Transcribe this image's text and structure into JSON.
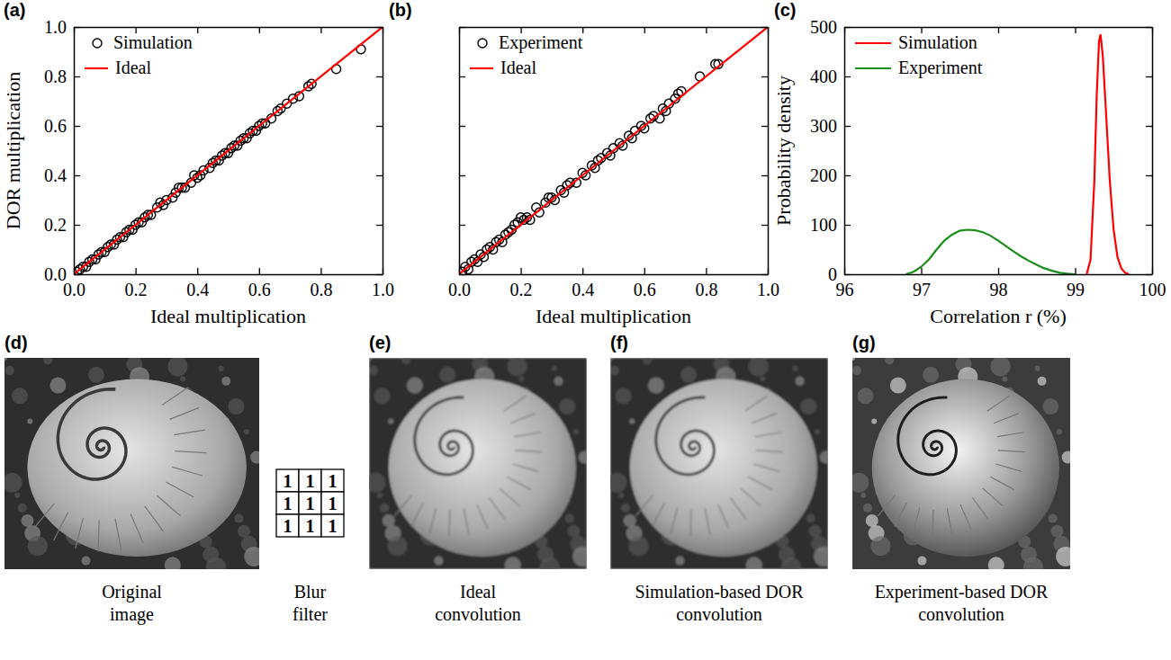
{
  "chart_data": [
    {
      "type": "scatter",
      "panel_label": "(a)",
      "xlabel": "Ideal multiplication",
      "ylabel": "DOR multiplication",
      "xlim": [
        0,
        1
      ],
      "ylim": [
        0,
        1
      ],
      "xticks": [
        {
          "value": 0,
          "label": "0.0"
        },
        0.2,
        0.4,
        0.6,
        0.8,
        {
          "value": 1,
          "label": "1.0"
        }
      ],
      "yticks": [
        {
          "value": 0,
          "label": "0.0"
        },
        0.2,
        0.4,
        0.6,
        0.8,
        {
          "value": 1,
          "label": "1.0"
        }
      ],
      "legend": "upper left",
      "series": [
        {
          "name": "Simulation",
          "type": "scatter",
          "marker": "circle",
          "color": "#000000",
          "x": [
            0.01,
            0.02,
            0.03,
            0.04,
            0.05,
            0.06,
            0.07,
            0.08,
            0.09,
            0.1,
            0.11,
            0.12,
            0.13,
            0.14,
            0.15,
            0.16,
            0.17,
            0.18,
            0.19,
            0.2,
            0.21,
            0.22,
            0.23,
            0.24,
            0.25,
            0.27,
            0.28,
            0.29,
            0.3,
            0.32,
            0.33,
            0.34,
            0.35,
            0.36,
            0.38,
            0.39,
            0.4,
            0.41,
            0.42,
            0.44,
            0.45,
            0.46,
            0.47,
            0.48,
            0.49,
            0.5,
            0.51,
            0.52,
            0.53,
            0.54,
            0.55,
            0.56,
            0.57,
            0.58,
            0.59,
            0.6,
            0.61,
            0.62,
            0.64,
            0.66,
            0.67,
            0.69,
            0.71,
            0.73,
            0.76,
            0.77,
            0.85,
            0.93
          ],
          "values": [
            0.01,
            0.02,
            0.03,
            0.03,
            0.05,
            0.06,
            0.06,
            0.08,
            0.09,
            0.09,
            0.11,
            0.12,
            0.12,
            0.14,
            0.15,
            0.15,
            0.17,
            0.18,
            0.18,
            0.2,
            0.21,
            0.21,
            0.23,
            0.24,
            0.24,
            0.27,
            0.29,
            0.28,
            0.3,
            0.31,
            0.33,
            0.35,
            0.35,
            0.35,
            0.37,
            0.4,
            0.39,
            0.4,
            0.42,
            0.43,
            0.45,
            0.46,
            0.46,
            0.48,
            0.49,
            0.49,
            0.51,
            0.52,
            0.52,
            0.54,
            0.55,
            0.55,
            0.57,
            0.58,
            0.58,
            0.6,
            0.61,
            0.61,
            0.63,
            0.66,
            0.67,
            0.69,
            0.71,
            0.72,
            0.76,
            0.77,
            0.83,
            0.91
          ]
        },
        {
          "name": "Ideal",
          "type": "line",
          "line_style": "solid",
          "color": "#ff0000",
          "x": [
            0,
            1
          ],
          "values": [
            0,
            1
          ]
        }
      ]
    },
    {
      "type": "scatter",
      "panel_label": "(b)",
      "xlabel": "Ideal multiplication",
      "xlim": [
        0,
        1
      ],
      "ylim": [
        0,
        1
      ],
      "xticks": [
        {
          "value": 0,
          "label": "0.0"
        },
        0.2,
        0.4,
        0.6,
        0.8,
        {
          "value": 1,
          "label": "1.0"
        }
      ],
      "yticks": [
        0,
        0.2,
        0.4,
        0.6,
        0.8,
        1
      ],
      "tick_labels": "x",
      "legend": "upper left",
      "series": [
        {
          "name": "Experiment",
          "type": "scatter",
          "marker": "circle",
          "color": "#000000",
          "x": [
            0.01,
            0.02,
            0.03,
            0.04,
            0.05,
            0.06,
            0.07,
            0.08,
            0.09,
            0.1,
            0.11,
            0.12,
            0.13,
            0.14,
            0.15,
            0.16,
            0.17,
            0.18,
            0.19,
            0.2,
            0.21,
            0.22,
            0.23,
            0.25,
            0.26,
            0.28,
            0.29,
            0.3,
            0.31,
            0.33,
            0.34,
            0.35,
            0.36,
            0.38,
            0.4,
            0.41,
            0.43,
            0.44,
            0.45,
            0.46,
            0.48,
            0.49,
            0.5,
            0.52,
            0.53,
            0.55,
            0.56,
            0.57,
            0.59,
            0.6,
            0.62,
            0.63,
            0.65,
            0.66,
            0.67,
            0.68,
            0.7,
            0.71,
            0.72,
            0.78,
            0.83,
            0.84
          ],
          "values": [
            0.01,
            0.03,
            0.02,
            0.05,
            0.06,
            0.05,
            0.08,
            0.07,
            0.1,
            0.11,
            0.1,
            0.13,
            0.14,
            0.13,
            0.16,
            0.17,
            0.18,
            0.2,
            0.21,
            0.23,
            0.22,
            0.23,
            0.22,
            0.27,
            0.25,
            0.29,
            0.31,
            0.31,
            0.3,
            0.34,
            0.33,
            0.36,
            0.37,
            0.37,
            0.41,
            0.4,
            0.44,
            0.43,
            0.46,
            0.47,
            0.49,
            0.48,
            0.51,
            0.53,
            0.52,
            0.56,
            0.55,
            0.58,
            0.6,
            0.59,
            0.63,
            0.64,
            0.63,
            0.67,
            0.66,
            0.69,
            0.71,
            0.73,
            0.74,
            0.8,
            0.85,
            0.85
          ]
        },
        {
          "name": "Ideal",
          "type": "line",
          "line_style": "solid",
          "color": "#ff0000",
          "x": [
            0,
            1
          ],
          "values": [
            0,
            1
          ]
        }
      ]
    },
    {
      "type": "line",
      "panel_label": "(c)",
      "xlabel": "Correlation r (%)",
      "ylabel": "Probability density",
      "xlim": [
        96,
        100
      ],
      "ylim": [
        0,
        500
      ],
      "xticks": [
        96,
        97,
        98,
        99,
        100
      ],
      "yticks": [
        0,
        100,
        200,
        300,
        400,
        500
      ],
      "legend": "upper left",
      "series": [
        {
          "name": "Simulation",
          "color": "#ff0000",
          "x": [
            99.15,
            99.2,
            99.25,
            99.28,
            99.31,
            99.33,
            99.36,
            99.4,
            99.45,
            99.5,
            99.55,
            99.6,
            99.65,
            99.7
          ],
          "values": [
            0,
            30,
            190,
            360,
            470,
            485,
            440,
            330,
            190,
            90,
            35,
            12,
            3,
            0
          ]
        },
        {
          "name": "Experiment",
          "color": "#1a8c1a",
          "x": [
            96.8,
            96.9,
            97.0,
            97.1,
            97.2,
            97.3,
            97.4,
            97.5,
            97.6,
            97.7,
            97.8,
            97.9,
            98.0,
            98.1,
            98.2,
            98.3,
            98.4,
            98.5,
            98.6,
            98.7,
            98.8,
            98.9,
            99.0
          ],
          "values": [
            0,
            5,
            15,
            30,
            50,
            68,
            80,
            88,
            90,
            89,
            85,
            78,
            68,
            57,
            46,
            36,
            27,
            19,
            12,
            7,
            3,
            1,
            0
          ]
        }
      ]
    }
  ],
  "images": {
    "panels": [
      {
        "panel_label": "(d)",
        "caption": "Original image"
      },
      {
        "panel_label": "(e)",
        "caption": "Ideal convolution"
      },
      {
        "panel_label": "(f)",
        "caption": "Simulation-based DOR convolution"
      },
      {
        "panel_label": "(g)",
        "caption": "Experiment-based DOR convolution"
      }
    ],
    "filter": {
      "caption": "Blur filter",
      "cells": [
        [
          1,
          1,
          1
        ],
        [
          1,
          1,
          1
        ],
        [
          1,
          1,
          1
        ]
      ]
    }
  }
}
